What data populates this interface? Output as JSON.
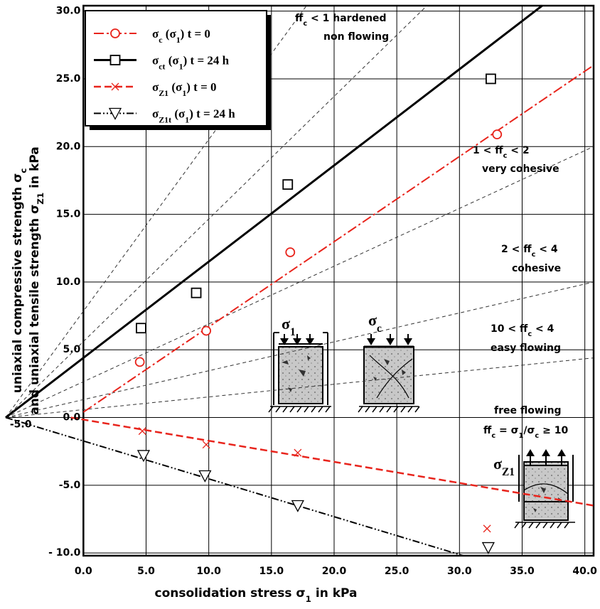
{
  "chart_data": {
    "type": "scatter",
    "xlabel": [
      "consolidation stress σ",
      "1",
      " in kPa"
    ],
    "ylabel": [
      [
        "uniaxial compressive strength σ",
        "c"
      ],
      [
        "and uniaxial tensile strength  σ",
        "Z1",
        " in kPa"
      ]
    ],
    "xlim": [
      -6.2,
      40.7
    ],
    "ylim": [
      -10.2,
      30.4
    ],
    "xticks": [
      {
        "value": -5,
        "label": "-5.0"
      },
      {
        "value": 0,
        "label": "0.0"
      },
      {
        "value": 5,
        "label": "5.0"
      },
      {
        "value": 10,
        "label": "10.0"
      },
      {
        "value": 15,
        "label": "15.0"
      },
      {
        "value": 20,
        "label": "20.0"
      },
      {
        "value": 25,
        "label": "25.0"
      },
      {
        "value": 30,
        "label": "30.0"
      },
      {
        "value": 35,
        "label": "35.0"
      },
      {
        "value": 40,
        "label": "40.0"
      }
    ],
    "yticks": [
      {
        "value": 30,
        "label": "30.0"
      },
      {
        "value": 25,
        "label": "25.0"
      },
      {
        "value": 20,
        "label": "20.0"
      },
      {
        "value": 15,
        "label": "15.0"
      },
      {
        "value": 10,
        "label": "10.0"
      },
      {
        "value": 5,
        "label": "5.0"
      },
      {
        "value": 0,
        "label": "0.0"
      },
      {
        "value": -5,
        "label": "-5.0"
      },
      {
        "value": -10,
        "label": "- 10.0"
      }
    ],
    "grid": true,
    "legend": "upper left",
    "series": [
      {
        "name": [
          "σ",
          "c",
          " (σ",
          "1",
          ") t = 0"
        ],
        "color": "#e8241c",
        "marker": "circle",
        "dash": "14,4,3,4",
        "width": 2,
        "x": [
          4.5,
          9.8,
          16.5,
          33.0
        ],
        "values": [
          4.1,
          6.4,
          12.2,
          20.9
        ],
        "fit": {
          "x": [
            0,
            40.7
          ],
          "values": [
            0.4,
            26.0
          ]
        }
      },
      {
        "name": [
          "σ",
          "ct",
          " (σ",
          "1",
          ") t = 24 h"
        ],
        "color": "#000000",
        "marker": "square",
        "dash": "none",
        "width": 3,
        "x": [
          4.6,
          9.0,
          16.3,
          32.5
        ],
        "values": [
          6.6,
          9.2,
          17.2,
          25.0
        ],
        "fit": {
          "x": [
            -6.2,
            36.6
          ],
          "values": [
            0,
            30.4
          ]
        }
      },
      {
        "name": [
          "σ",
          "Z1",
          " (σ",
          "1",
          ") t = 0"
        ],
        "color": "#e8241c",
        "marker": "x",
        "dash": "10,5",
        "width": 2.5,
        "x": [
          4.7,
          9.8,
          17.1,
          32.2
        ],
        "values": [
          -1.0,
          -2.0,
          -2.6,
          -8.2
        ],
        "fit": {
          "x": [
            -1.0,
            40.7
          ],
          "values": [
            0,
            -6.5
          ]
        }
      },
      {
        "name": [
          "σ",
          "Z1t",
          " (σ",
          "1",
          ") t = 24 h"
        ],
        "color": "#000000",
        "marker": "triangle",
        "dash": "10,3,2,3,2,3",
        "width": 2,
        "x": [
          4.8,
          9.7,
          17.1,
          32.3
        ],
        "values": [
          -2.8,
          -4.3,
          -6.5,
          -9.6
        ],
        "fit": {
          "x": [
            -6.2,
            30.3
          ],
          "values": [
            0,
            -10.2
          ]
        }
      }
    ],
    "reference_lines": [
      {
        "x": [
          -6.2,
          17.8
        ],
        "values": [
          0,
          30.4
        ]
      },
      {
        "x": [
          -6.2,
          27.4
        ],
        "values": [
          0,
          30.4
        ]
      },
      {
        "x": [
          -6.2,
          40.7
        ],
        "values": [
          0,
          20.0
        ]
      },
      {
        "x": [
          -6.2,
          40.7
        ],
        "values": [
          0,
          10.0
        ]
      },
      {
        "x": [
          -6.2,
          40.7
        ],
        "values": [
          0,
          4.4
        ]
      }
    ],
    "annotations": [
      [
        "ff",
        "c",
        " < 1 hardened"
      ],
      [
        "non flowing"
      ],
      [
        "1 < ff",
        "c",
        " < 2"
      ],
      [
        "very cohesive"
      ],
      [
        "2 < ff",
        "c",
        " < 4"
      ],
      [
        "cohesive"
      ],
      [
        "10 < ff",
        "c",
        " < 4"
      ],
      [
        "easy flowing"
      ],
      [
        "free flowing"
      ],
      [
        "ff",
        "c",
        " = σ",
        "1",
        "/σ",
        "c",
        " ≥ 10"
      ]
    ],
    "illustrations": [
      [
        "σ",
        "1"
      ],
      [
        "σ",
        "c"
      ],
      [
        "σ",
        "Z1"
      ]
    ]
  }
}
